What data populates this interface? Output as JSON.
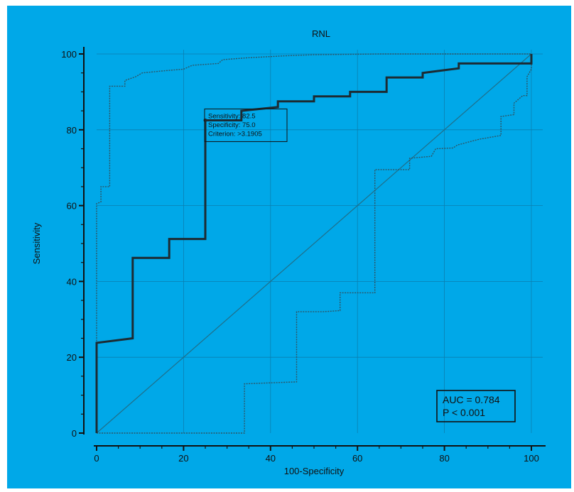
{
  "colors": {
    "background": "#00a8e8",
    "roc_line": "#1c2b33",
    "ci_line": "#2d5566",
    "diagonal": "#1f6f8a",
    "grid": "#0a7fb0",
    "axis": "#111111"
  },
  "chart_data": {
    "type": "line",
    "title": "RNL",
    "xlabel": "100-Specificity",
    "ylabel": "Sensitivity",
    "xlim": [
      0,
      100
    ],
    "ylim": [
      0,
      100
    ],
    "xticks": [
      0,
      20,
      40,
      60,
      80,
      100
    ],
    "yticks": [
      0,
      20,
      40,
      60,
      80,
      100
    ],
    "grid": true,
    "series": [
      {
        "role": "roc",
        "points": [
          [
            0,
            0
          ],
          [
            0,
            23.8
          ],
          [
            8.3,
            25
          ],
          [
            8.3,
            46.2
          ],
          [
            16.7,
            46.2
          ],
          [
            16.7,
            51.2
          ],
          [
            25,
            51.2
          ],
          [
            25,
            82.5
          ],
          [
            33.3,
            82.5
          ],
          [
            33.3,
            85
          ],
          [
            41.7,
            86
          ],
          [
            41.7,
            87.5
          ],
          [
            50,
            87.5
          ],
          [
            50,
            88.8
          ],
          [
            58.3,
            88.8
          ],
          [
            58.3,
            90
          ],
          [
            66.7,
            90
          ],
          [
            66.7,
            93.8
          ],
          [
            75,
            93.8
          ],
          [
            75,
            95
          ],
          [
            83.3,
            96.2
          ],
          [
            83.3,
            97.5
          ],
          [
            100,
            97.5
          ],
          [
            100,
            100
          ]
        ]
      },
      {
        "role": "ci-upper",
        "points": [
          [
            0,
            0
          ],
          [
            0,
            60.5
          ],
          [
            1,
            61
          ],
          [
            1,
            65
          ],
          [
            3,
            65
          ],
          [
            3,
            91.5
          ],
          [
            6.5,
            91.5
          ],
          [
            6.5,
            93
          ],
          [
            9,
            94
          ],
          [
            10.5,
            95
          ],
          [
            15,
            95.5
          ],
          [
            20,
            96
          ],
          [
            22,
            97
          ],
          [
            28,
            97.5
          ],
          [
            29,
            98.5
          ],
          [
            35,
            99
          ],
          [
            43,
            99.5
          ],
          [
            50,
            99.8
          ],
          [
            65,
            100
          ],
          [
            100,
            100
          ]
        ]
      },
      {
        "role": "ci-lower",
        "points": [
          [
            0,
            0
          ],
          [
            34,
            0
          ],
          [
            34,
            13
          ],
          [
            46,
            13.5
          ],
          [
            46,
            32
          ],
          [
            52,
            32
          ],
          [
            56,
            32.3
          ],
          [
            56,
            37
          ],
          [
            64,
            37
          ],
          [
            64,
            69.5
          ],
          [
            72,
            69.5
          ],
          [
            72,
            72.5
          ],
          [
            77,
            73
          ],
          [
            78,
            75
          ],
          [
            82,
            75.2
          ],
          [
            83,
            76
          ],
          [
            88,
            77.5
          ],
          [
            93,
            78.5
          ],
          [
            93,
            83.5
          ],
          [
            96,
            84
          ],
          [
            96,
            87
          ],
          [
            98,
            89
          ],
          [
            99,
            89
          ],
          [
            99,
            94
          ],
          [
            100,
            96
          ],
          [
            100,
            100
          ]
        ]
      },
      {
        "role": "reference",
        "points": [
          [
            0,
            0
          ],
          [
            100,
            100
          ]
        ]
      }
    ],
    "criterion_box": {
      "lines": [
        "Sensitivity: 82.5",
        "Specificity: 75.0",
        "Criterion: >3.1905"
      ],
      "anchor": [
        25,
        82.5
      ]
    },
    "stats_box": {
      "lines": [
        "AUC = 0.784",
        "P < 0.001"
      ],
      "placement": "bottom-right"
    }
  }
}
